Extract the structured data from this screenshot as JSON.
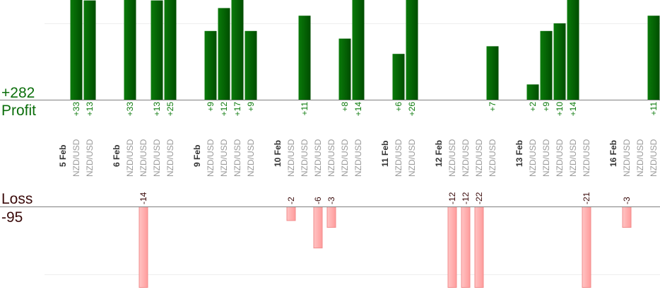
{
  "summary": {
    "profit_total": "+282",
    "profit_label": "Profit",
    "loss_label": "Loss",
    "loss_total": "-95"
  },
  "chart_data": {
    "type": "bar",
    "title": "",
    "colors": {
      "profit": "#006400",
      "loss": "#ffb0b0",
      "profit_text": "#0b7a0b",
      "loss_text": "#3a0a0a",
      "symbol_text": "#9a9a9a"
    },
    "grid": true,
    "columns": [
      {
        "date": "5 Feb"
      },
      {
        "symbol": "NZD/USD",
        "value": 33,
        "label": "+33"
      },
      {
        "symbol": "NZD/USD",
        "value": 13,
        "label": "+13"
      },
      {
        "spacer": true
      },
      {
        "date": "6 Feb"
      },
      {
        "symbol": "NZD/USD",
        "value": 33,
        "label": "+33"
      },
      {
        "symbol": "NZD/USD",
        "value": -14,
        "label": "-14"
      },
      {
        "symbol": "NZD/USD",
        "value": 13,
        "label": "+13"
      },
      {
        "symbol": "NZD/USD",
        "value": 25,
        "label": "+25"
      },
      {
        "spacer": true
      },
      {
        "date": "9 Feb"
      },
      {
        "symbol": "NZD/USD",
        "value": 9,
        "label": "+9"
      },
      {
        "symbol": "NZD/USD",
        "value": 12,
        "label": "+12"
      },
      {
        "symbol": "NZD/USD",
        "value": 17,
        "label": "+17"
      },
      {
        "symbol": "NZD/USD",
        "value": 9,
        "label": "+9"
      },
      {
        "spacer": true
      },
      {
        "date": "10 Feb"
      },
      {
        "symbol": "NZD/USD",
        "value": -2,
        "label": "-2"
      },
      {
        "symbol": "NZD/USD",
        "value": 11,
        "label": "+11"
      },
      {
        "symbol": "NZD/USD",
        "value": -6,
        "label": "-6"
      },
      {
        "symbol": "NZD/USD",
        "value": -3,
        "label": "-3"
      },
      {
        "symbol": "NZD/USD",
        "value": 8,
        "label": "+8"
      },
      {
        "symbol": "NZD/USD",
        "value": 14,
        "label": "+14"
      },
      {
        "spacer": true
      },
      {
        "date": "11 Feb"
      },
      {
        "symbol": "NZD/USD",
        "value": 6,
        "label": "+6"
      },
      {
        "symbol": "NZD/USD",
        "value": 26,
        "label": "+26"
      },
      {
        "spacer": true
      },
      {
        "date": "12 Feb"
      },
      {
        "symbol": "NZD/USD",
        "value": -12,
        "label": "-12"
      },
      {
        "symbol": "NZD/USD",
        "value": -12,
        "label": "-12"
      },
      {
        "symbol": "NZD/USD",
        "value": -22,
        "label": "-22"
      },
      {
        "symbol": "NZD/USD",
        "value": 7,
        "label": "+7"
      },
      {
        "spacer": true
      },
      {
        "date": "13 Feb"
      },
      {
        "symbol": "NZD/USD",
        "value": 2,
        "label": "+2"
      },
      {
        "symbol": "NZD/USD",
        "value": 9,
        "label": "+9"
      },
      {
        "symbol": "NZD/USD",
        "value": 10,
        "label": "+10"
      },
      {
        "symbol": "NZD/USD",
        "value": 14,
        "label": "+14"
      },
      {
        "symbol": "NZD/USD",
        "value": -21,
        "label": "-21"
      },
      {
        "spacer": true
      },
      {
        "date": "16 Feb"
      },
      {
        "symbol": "NZD/USD",
        "value": -3,
        "label": "-3"
      },
      {
        "symbol": "NZD/USD",
        "value": 0,
        "label": ""
      },
      {
        "symbol": "NZD/USD",
        "value": 11,
        "label": "+11"
      }
    ]
  }
}
